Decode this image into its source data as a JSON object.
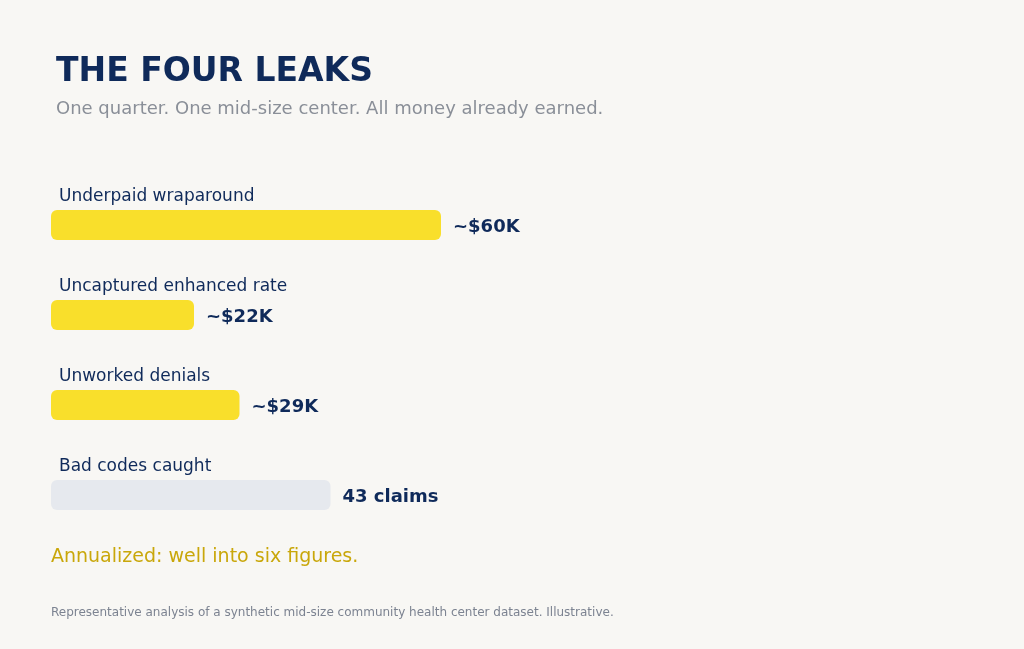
{
  "chart_data": {
    "type": "bar",
    "orientation": "horizontal",
    "title": "THE FOUR LEAKS",
    "subtitle": "One quarter. One mid-size center. All money already earned.",
    "categories": [
      "Underpaid wraparound",
      "Uncaptured enhanced rate",
      "Unworked denials",
      "Bad codes caught"
    ],
    "values": [
      60,
      22,
      29,
      43
    ],
    "colors": [
      "#f9df2b",
      "#f9df2b",
      "#f9df2b",
      "#e6e9ee"
    ],
    "value_labels": [
      "~$60K",
      "~$22K",
      "~$29K",
      "43 claims"
    ],
    "annotations": [
      "Annualized: well into six figures.",
      "Representative analysis of a synthetic mid-size community health center dataset. Illustrative."
    ]
  }
}
